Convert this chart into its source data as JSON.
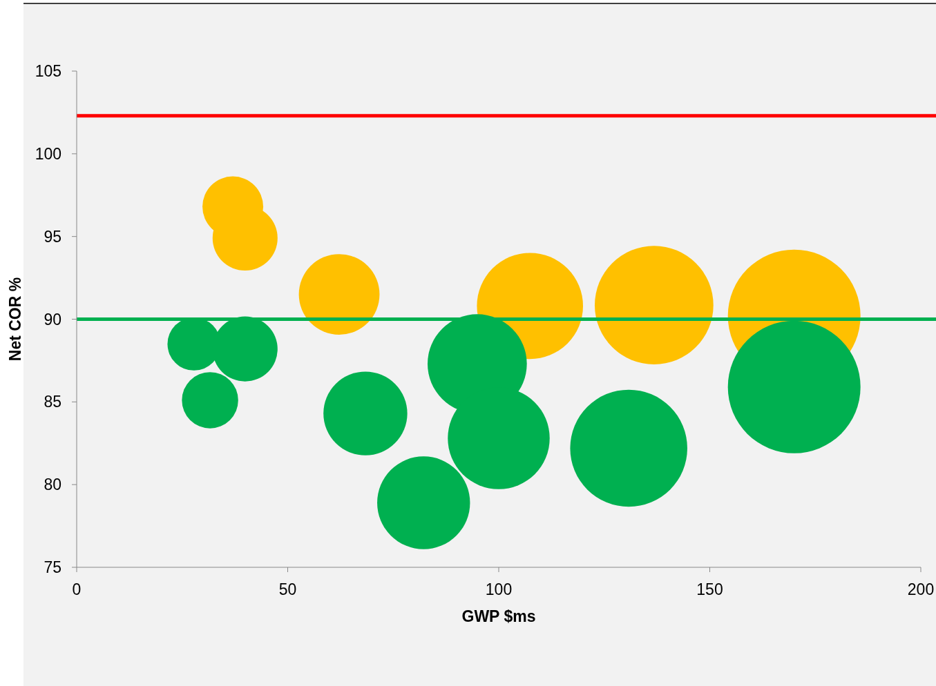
{
  "chart_data": {
    "type": "bubble",
    "xlabel": "GWP $ms",
    "ylabel": "Net COR %",
    "xlim": [
      0,
      200
    ],
    "ylim": [
      75,
      105
    ],
    "xticks": [
      0,
      50,
      100,
      150,
      200
    ],
    "yticks": [
      75,
      80,
      85,
      90,
      95,
      100,
      105
    ],
    "series": [
      {
        "color": "#ffc000",
        "x": [
          37.0,
          39.9,
          62.2,
          107.4,
          136.8,
          170.0
        ],
        "values": [
          96.8,
          94.9,
          91.5,
          90.8,
          90.85,
          90.2
        ],
        "sizes": [
          0.21,
          0.24,
          0.37,
          0.64,
          0.8,
          1
        ]
      },
      {
        "color": "#00b050",
        "x": [
          27.8,
          39.9,
          31.6,
          68.4,
          94.9,
          82.2,
          100.0,
          130.8,
          170.0
        ],
        "values": [
          88.5,
          88.2,
          85.1,
          84.3,
          87.3,
          78.9,
          82.8,
          82.2,
          85.9
        ],
        "sizes": [
          0.16,
          0.24,
          0.18,
          0.4,
          0.56,
          0.49,
          0.59,
          0.78,
          1
        ]
      }
    ],
    "ref_lines": [
      {
        "axis": "y",
        "value": 102.3,
        "color": "#ff0000"
      },
      {
        "axis": "y",
        "value": 90,
        "color": "#00b050"
      }
    ]
  }
}
